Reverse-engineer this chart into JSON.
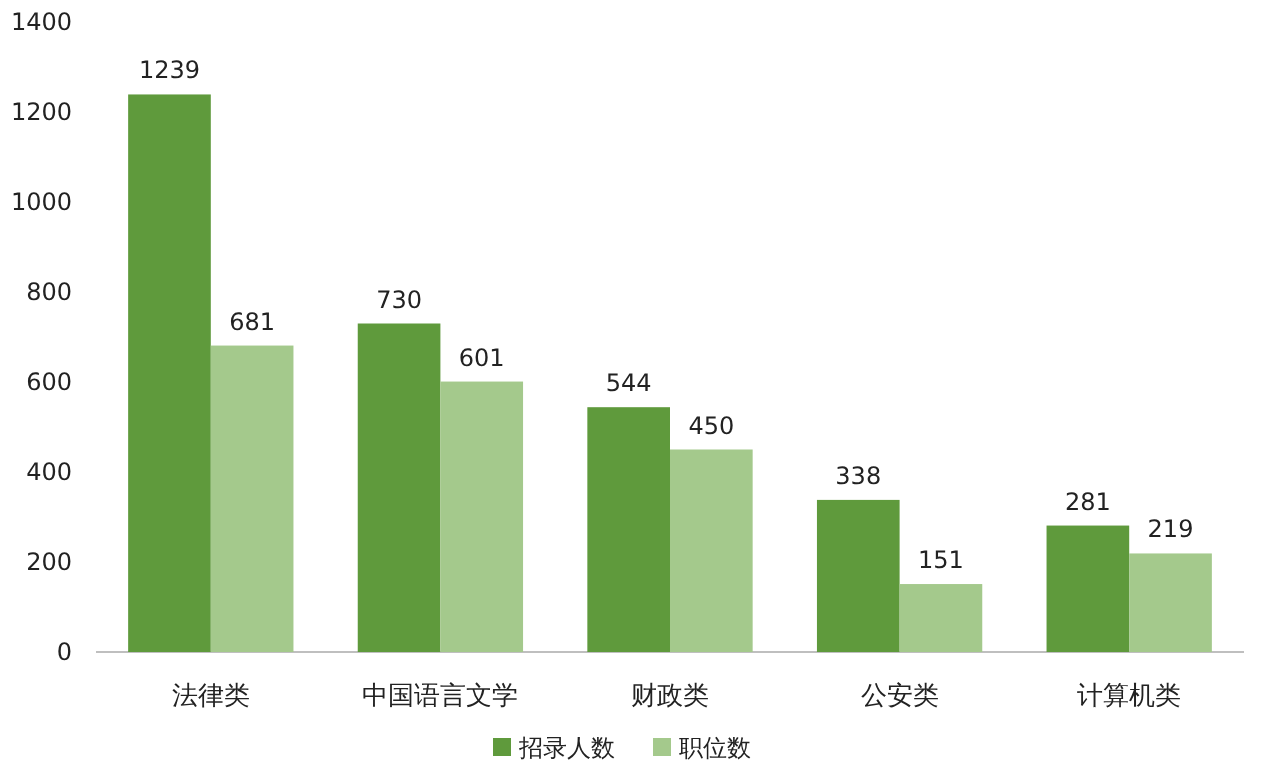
{
  "chart_data": {
    "type": "bar",
    "categories": [
      "法律类",
      "中国语言文学",
      "财政类",
      "公安类",
      "计算机类"
    ],
    "series": [
      {
        "name": "招录人数",
        "color": "#5f9a3c",
        "values": [
          1239,
          730,
          544,
          338,
          281
        ]
      },
      {
        "name": "职位数",
        "color": "#a4c98c",
        "values": [
          681,
          601,
          450,
          151,
          219
        ]
      }
    ],
    "ylim": [
      0,
      1400
    ],
    "yticks": [
      0,
      200,
      400,
      600,
      800,
      1000,
      1200,
      1400
    ],
    "data_labels": true,
    "legend": "bottom",
    "grid": false
  }
}
